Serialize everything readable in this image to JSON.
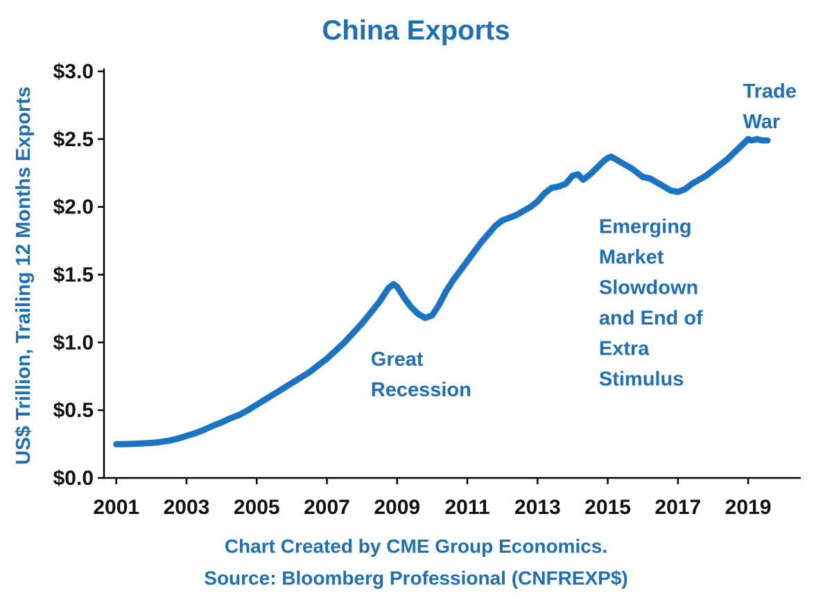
{
  "colors": {
    "accent_text": "#1F6FB4",
    "line": "#1B74C2",
    "axis": "#000000",
    "tick_text": "#111111"
  },
  "footer": {
    "line1": "Chart Created by CME Group Economics.",
    "line2": "Source:  Bloomberg Professional (CNFREXP$)"
  },
  "chart_data": {
    "type": "line",
    "title": "China Exports",
    "xlabel": "",
    "ylabel": "US$ Trillion, Trailing 12 Months Exports",
    "xlim": [
      2000.65,
      2020.5
    ],
    "ylim": [
      0,
      3.0
    ],
    "grid": false,
    "legend": "none",
    "x_ticks": [
      2001,
      2003,
      2005,
      2007,
      2009,
      2011,
      2013,
      2015,
      2017,
      2019
    ],
    "y_ticks": [
      {
        "value": 0.0,
        "label": "$0.0"
      },
      {
        "value": 0.5,
        "label": "$0.5"
      },
      {
        "value": 1.0,
        "label": "$1.0"
      },
      {
        "value": 1.5,
        "label": "$1.5"
      },
      {
        "value": 2.0,
        "label": "$2.0"
      },
      {
        "value": 2.5,
        "label": "$2.5"
      },
      {
        "value": 3.0,
        "label": "$3.0"
      }
    ],
    "series": [
      {
        "name": "China exports, trailing 12 months (US$ trillion)",
        "points": [
          [
            2001.0,
            0.249
          ],
          [
            2001.25,
            0.25
          ],
          [
            2001.5,
            0.252
          ],
          [
            2001.75,
            0.255
          ],
          [
            2002.0,
            0.258
          ],
          [
            2002.25,
            0.265
          ],
          [
            2002.5,
            0.275
          ],
          [
            2002.75,
            0.29
          ],
          [
            2003.0,
            0.31
          ],
          [
            2003.25,
            0.33
          ],
          [
            2003.5,
            0.355
          ],
          [
            2003.75,
            0.385
          ],
          [
            2004.0,
            0.41
          ],
          [
            2004.25,
            0.44
          ],
          [
            2004.5,
            0.465
          ],
          [
            2004.75,
            0.5
          ],
          [
            2005.0,
            0.54
          ],
          [
            2005.25,
            0.58
          ],
          [
            2005.5,
            0.62
          ],
          [
            2005.75,
            0.66
          ],
          [
            2006.0,
            0.7
          ],
          [
            2006.25,
            0.74
          ],
          [
            2006.5,
            0.78
          ],
          [
            2006.75,
            0.83
          ],
          [
            2007.0,
            0.88
          ],
          [
            2007.25,
            0.94
          ],
          [
            2007.5,
            1.0
          ],
          [
            2007.75,
            1.07
          ],
          [
            2008.0,
            1.14
          ],
          [
            2008.25,
            1.22
          ],
          [
            2008.5,
            1.3
          ],
          [
            2008.75,
            1.4
          ],
          [
            2008.9,
            1.43
          ],
          [
            2009.0,
            1.41
          ],
          [
            2009.2,
            1.33
          ],
          [
            2009.4,
            1.26
          ],
          [
            2009.6,
            1.21
          ],
          [
            2009.8,
            1.18
          ],
          [
            2010.0,
            1.2
          ],
          [
            2010.2,
            1.28
          ],
          [
            2010.4,
            1.38
          ],
          [
            2010.6,
            1.46
          ],
          [
            2010.8,
            1.53
          ],
          [
            2011.0,
            1.6
          ],
          [
            2011.2,
            1.67
          ],
          [
            2011.4,
            1.74
          ],
          [
            2011.6,
            1.8
          ],
          [
            2011.8,
            1.86
          ],
          [
            2012.0,
            1.9
          ],
          [
            2012.2,
            1.92
          ],
          [
            2012.4,
            1.94
          ],
          [
            2012.6,
            1.97
          ],
          [
            2012.8,
            2.0
          ],
          [
            2013.0,
            2.04
          ],
          [
            2013.2,
            2.1
          ],
          [
            2013.4,
            2.14
          ],
          [
            2013.6,
            2.15
          ],
          [
            2013.8,
            2.17
          ],
          [
            2014.0,
            2.23
          ],
          [
            2014.15,
            2.24
          ],
          [
            2014.3,
            2.2
          ],
          [
            2014.5,
            2.24
          ],
          [
            2014.7,
            2.29
          ],
          [
            2014.85,
            2.33
          ],
          [
            2015.0,
            2.36
          ],
          [
            2015.1,
            2.37
          ],
          [
            2015.3,
            2.34
          ],
          [
            2015.5,
            2.31
          ],
          [
            2015.7,
            2.28
          ],
          [
            2015.85,
            2.25
          ],
          [
            2016.0,
            2.22
          ],
          [
            2016.2,
            2.21
          ],
          [
            2016.4,
            2.18
          ],
          [
            2016.6,
            2.15
          ],
          [
            2016.8,
            2.12
          ],
          [
            2017.0,
            2.11
          ],
          [
            2017.2,
            2.13
          ],
          [
            2017.4,
            2.17
          ],
          [
            2017.6,
            2.2
          ],
          [
            2017.8,
            2.23
          ],
          [
            2018.0,
            2.27
          ],
          [
            2018.2,
            2.31
          ],
          [
            2018.4,
            2.35
          ],
          [
            2018.6,
            2.4
          ],
          [
            2018.8,
            2.45
          ],
          [
            2019.0,
            2.5
          ],
          [
            2019.1,
            2.49
          ],
          [
            2019.25,
            2.5
          ],
          [
            2019.4,
            2.49
          ],
          [
            2019.55,
            2.49
          ]
        ]
      }
    ],
    "annotations": [
      {
        "id": "great-recession",
        "text": "Great\nRecession",
        "x": 2008.25,
        "y": 0.97
      },
      {
        "id": "em-slowdown",
        "text": "Emerging\nMarket\nSlowdown\nand End of\nExtra\nStimulus",
        "x": 2014.75,
        "y": 1.95
      },
      {
        "id": "trade-war",
        "text": "Trade\nWar",
        "x": 2018.85,
        "y": 2.95
      }
    ]
  }
}
